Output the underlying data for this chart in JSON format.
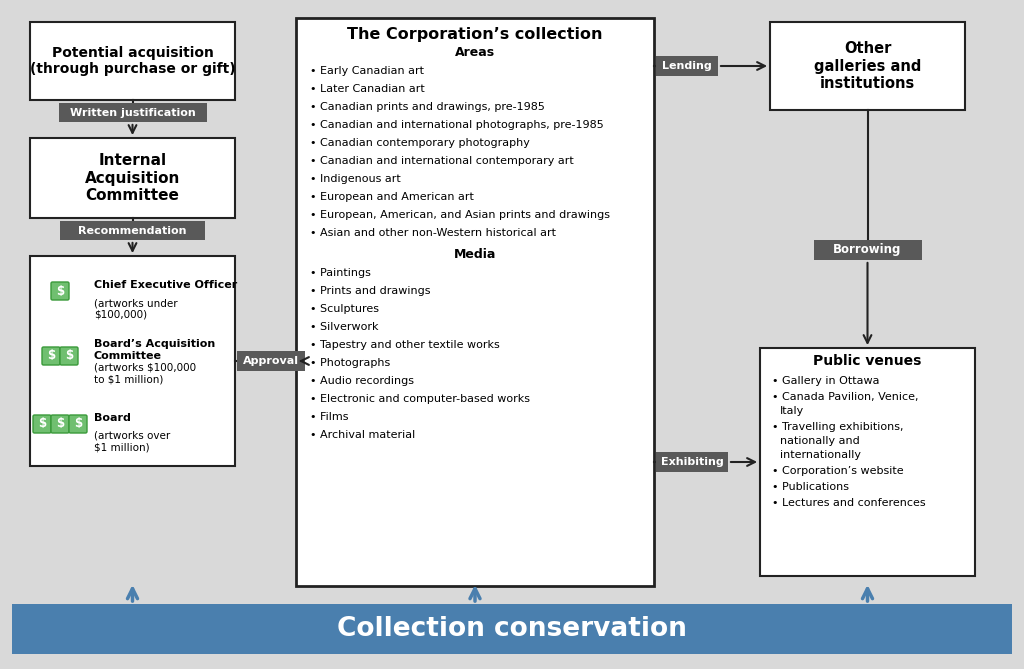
{
  "bg_color": "#d9d9d9",
  "box_bg": "#ffffff",
  "box_border": "#222222",
  "label_bg": "#595959",
  "label_fg": "#ffffff",
  "arrow_color": "#222222",
  "blue_bar_bg": "#4a7fae",
  "blue_bar_fg": "#ffffff",
  "dollar_bg": "#70bf70",
  "dollar_fg": "#ffffff",
  "dollar_border": "#3a9a3a",
  "title_bottom": "Collection conservation",
  "box1_title": "Potential acquisition\n(through purchase or gift)",
  "label_written": "Written justification",
  "box2_title": "Internal\nAcquisition\nCommittee",
  "label_recommendation": "Recommendation",
  "box3_entries": [
    {
      "icons": 1,
      "bold": "Chief Executive Officer",
      "detail": "(artworks under\n$100,000)"
    },
    {
      "icons": 2,
      "bold": "Board’s Acquisition\nCommittee",
      "detail": "(artworks $100,000\nto $1 million)"
    },
    {
      "icons": 3,
      "bold": "Board",
      "detail": "(artworks over\n$1 million)"
    }
  ],
  "label_approval": "Approval",
  "center_box_title": "The Corporation’s collection",
  "center_areas_title": "Areas",
  "center_areas": [
    "Early Canadian art",
    "Later Canadian art",
    "Canadian prints and drawings, pre-1985",
    "Canadian and international photographs, pre-1985",
    "Canadian contemporary photography",
    "Canadian and international contemporary art",
    "Indigenous art",
    "European and American art",
    "European, American, and Asian prints and drawings",
    "Asian and other non-Western historical art"
  ],
  "center_media_title": "Media",
  "center_media": [
    "Paintings",
    "Prints and drawings",
    "Sculptures",
    "Silverwork",
    "Tapestry and other textile works",
    "Photographs",
    "Audio recordings",
    "Electronic and computer-based works",
    "Films",
    "Archival material"
  ],
  "label_lending": "Lending",
  "label_borrowing": "Borrowing",
  "label_exhibiting": "Exhibiting",
  "right_top_title": "Other\ngalleries and\ninstitutions",
  "right_bottom_title": "Public venues",
  "right_bottom_items": [
    "Gallery in Ottawa",
    "Canada Pavilion, Venice,\nItaly",
    "Travelling exhibitions,\nnationally and\ninternationally",
    "Corporation’s website",
    "Publications",
    "Lectures and conferences"
  ]
}
